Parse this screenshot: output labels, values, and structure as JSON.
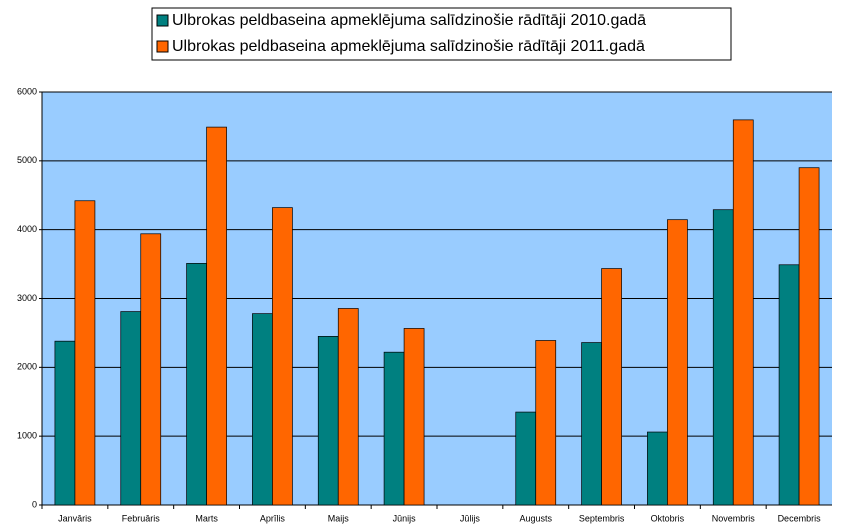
{
  "chart_data": {
    "type": "bar",
    "categories": [
      "Janvāris",
      "Februāris",
      "Marts",
      "Aprīlis",
      "Maijs",
      "Jūnijs",
      "Jūlijs",
      "Augusts",
      "Septembris",
      "Oktobris",
      "Novembris",
      "Decembris"
    ],
    "series": [
      {
        "name": "Ulbrokas peldbaseina apmeklējuma salīdzinošie rādītāji 2010.gadā",
        "color": "#008080",
        "values": [
          2380,
          2810,
          3510,
          2780,
          2450,
          2220,
          null,
          1350,
          2360,
          1060,
          4290,
          3490
        ]
      },
      {
        "name": "Ulbrokas peldbaseina apmeklējuma salīdzinošie rādītāji 2011.gadā",
        "color": "#ff6600",
        "values": [
          4420,
          3940,
          5490,
          4320,
          2855,
          2565,
          null,
          2390,
          3435,
          4145,
          5595,
          4900
        ]
      }
    ],
    "ylim": [
      0,
      6000
    ],
    "yticks": [
      0,
      1000,
      2000,
      3000,
      4000,
      5000,
      6000
    ],
    "grid": true,
    "legend": "top"
  }
}
